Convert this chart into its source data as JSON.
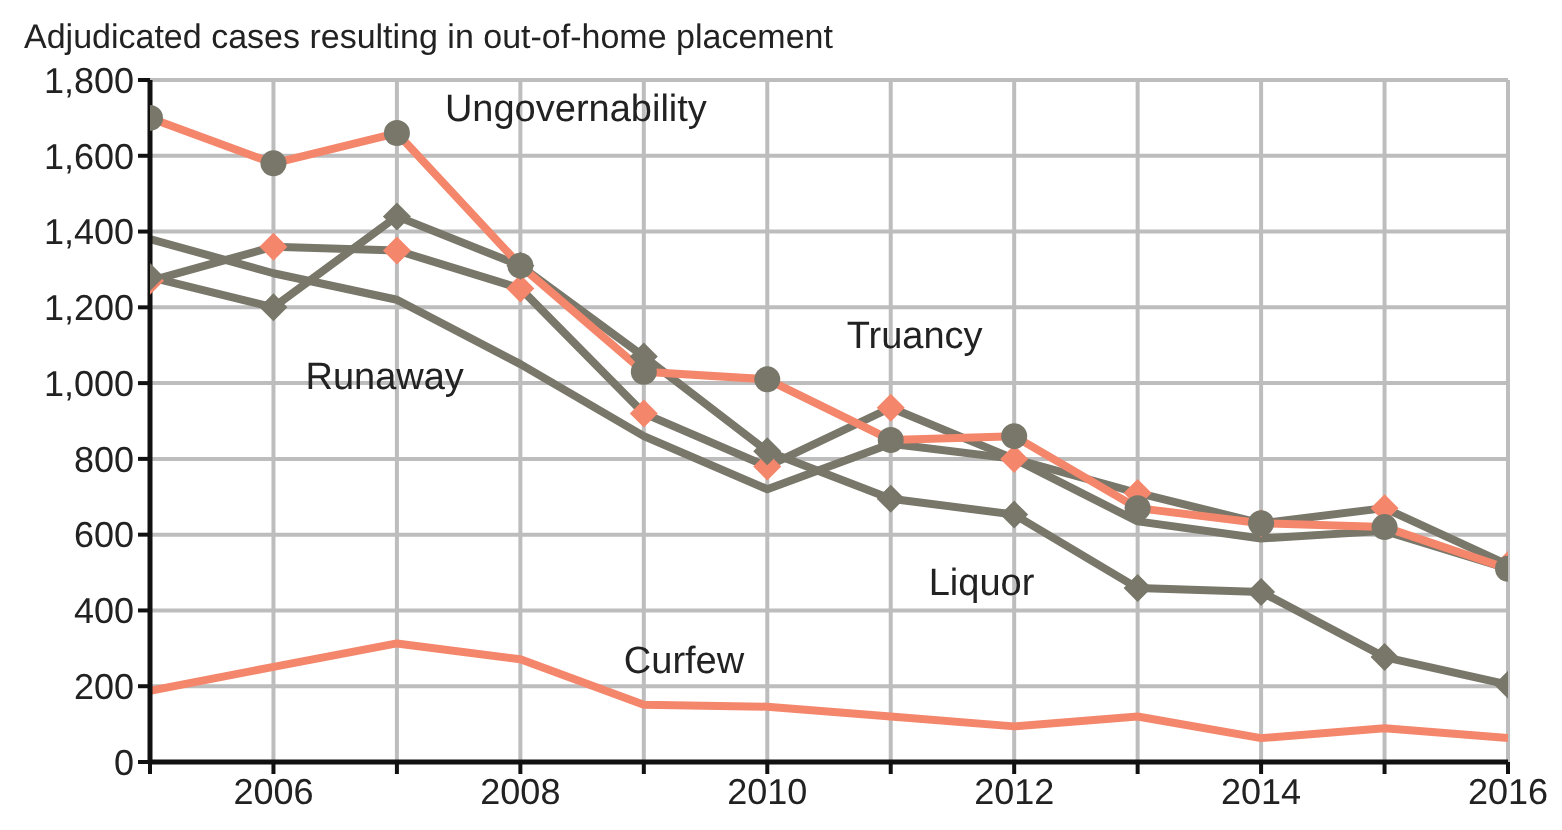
{
  "chart_data": {
    "type": "line",
    "title": "Adjudicated cases resulting in out-of-home placement",
    "x": [
      2005,
      2006,
      2007,
      2008,
      2009,
      2010,
      2011,
      2012,
      2013,
      2014,
      2015,
      2016
    ],
    "series": [
      {
        "name": "Ungovernability",
        "color": "#f4866b",
        "marker": "circle",
        "colors": [
          "#78776a",
          "#78776a",
          "#78776a",
          "#78776a",
          "#78776a",
          "#78776a",
          "#78776a",
          "#78776a",
          "#78776a",
          "#78776a",
          "#78776a",
          "#78776a"
        ],
        "values": [
          1700,
          1580,
          1660,
          1310,
          1030,
          1010,
          850,
          860,
          670,
          630,
          620,
          510
        ]
      },
      {
        "name": "Truancy",
        "color": "#78776a",
        "marker": "diamond",
        "colors": [
          "#f4866b",
          "#f4866b",
          "#f4866b",
          "#f4866b",
          "#f4866b",
          "#f4866b",
          "#f4866b",
          "#f4866b",
          "#f4866b",
          "#f4866b",
          "#f4866b",
          "#f4866b"
        ],
        "values": [
          1270,
          1360,
          1350,
          1250,
          920,
          780,
          935,
          800,
          710,
          630,
          670,
          520
        ]
      },
      {
        "name": "Runaway",
        "color": "#78776a",
        "marker": "none",
        "values": [
          1380,
          1290,
          1220,
          1050,
          860,
          720,
          840,
          800,
          635,
          590,
          610,
          510
        ]
      },
      {
        "name": "Liquor",
        "color": "#78776a",
        "marker": "diamond",
        "colors": [
          "#78776a",
          "#78776a",
          "#78776a",
          "#78776a",
          "#78776a",
          "#78776a",
          "#78776a",
          "#78776a",
          "#78776a",
          "#78776a",
          "#78776a",
          "#78776a"
        ],
        "values": [
          1280,
          1200,
          1440,
          1310,
          1070,
          820,
          695,
          653,
          459,
          449,
          277,
          204
        ]
      },
      {
        "name": "Curfew",
        "color": "#f4866b",
        "marker": "none",
        "values": [
          188,
          251,
          313,
          271,
          151,
          146,
          120,
          94,
          120,
          63,
          89,
          63
        ]
      }
    ],
    "xlim": [
      2005,
      2016
    ],
    "xticks": [
      {
        "value": 2005,
        "label": null
      },
      2006,
      {
        "value": 2007,
        "label": null
      },
      2008,
      {
        "value": 2009,
        "label": null
      },
      2010,
      {
        "value": 2011,
        "label": null
      },
      2012,
      {
        "value": 2013,
        "label": null
      },
      2014,
      {
        "value": 2015,
        "label": null
      },
      2016
    ],
    "ylim": [
      0,
      1800
    ],
    "yticks": [
      0,
      200,
      400,
      600,
      800,
      {
        "value": 1000,
        "label": "1,000"
      },
      {
        "value": 1200,
        "label": "1,200"
      },
      {
        "value": 1400,
        "label": "1,400"
      },
      {
        "value": 1600,
        "label": "1,600"
      },
      {
        "value": 1800,
        "label": "1,800"
      }
    ],
    "grid": true
  }
}
